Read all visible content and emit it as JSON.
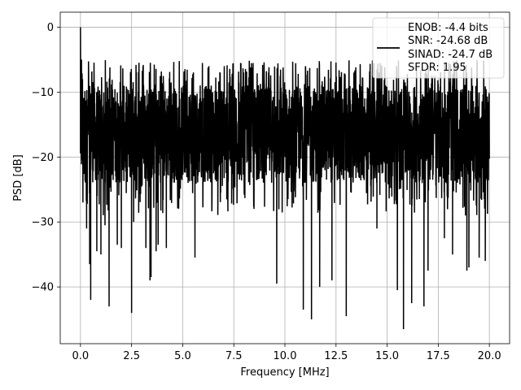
{
  "chart_data": {
    "type": "line",
    "title": "",
    "xlabel": "Frequency [MHz]",
    "ylabel": "PSD [dB]",
    "xlim": [
      -0.99,
      20.99
    ],
    "ylim": [
      -48.74,
      2.31
    ],
    "xticks": [
      0.0,
      2.5,
      5.0,
      7.5,
      10.0,
      12.5,
      15.0,
      17.5,
      20.0
    ],
    "xtick_labels": [
      "0.0",
      "2.5",
      "5.0",
      "7.5",
      "10.0",
      "12.5",
      "15.0",
      "17.5",
      "20.0"
    ],
    "yticks": [
      0,
      -10,
      -20,
      -30,
      -40
    ],
    "ytick_labels": [
      "0",
      "−10",
      "−20",
      "−30",
      "−40"
    ],
    "grid": true,
    "legend_position": "top-right",
    "legend_lines": [
      "ENOB: -4.4 bits",
      "SNR: -24.68 dB",
      "SINAD: -24.7 dB",
      "SFDR: 1.95"
    ],
    "series": [
      {
        "color": "#000000",
        "noise_band": {
          "x_start": 0.0,
          "x_end": 20.0,
          "typical_min": -24.0,
          "typical_max": -9.0
        },
        "peaks": [
          [
            0.0,
            0.0
          ],
          [
            0.05,
            -5.0
          ],
          [
            0.1,
            -8.0
          ]
        ],
        "dips": [
          [
            0.12,
            -27.0
          ],
          [
            0.3,
            -31.0
          ],
          [
            0.45,
            -36.5
          ],
          [
            0.5,
            -42.0
          ],
          [
            0.8,
            -34.5
          ],
          [
            1.0,
            -35.0
          ],
          [
            1.2,
            -30.5
          ],
          [
            1.4,
            -43.0
          ],
          [
            1.8,
            -33.5
          ],
          [
            2.0,
            -34.0
          ],
          [
            2.5,
            -44.0
          ],
          [
            2.6,
            -30.0
          ],
          [
            3.2,
            -34.0
          ],
          [
            3.4,
            -39.0
          ],
          [
            3.45,
            -38.5
          ],
          [
            3.7,
            -34.5
          ],
          [
            3.8,
            -33.5
          ],
          [
            4.2,
            -34.0
          ],
          [
            5.6,
            -35.5
          ],
          [
            9.6,
            -39.5
          ],
          [
            10.9,
            -43.5
          ],
          [
            11.3,
            -45.0
          ],
          [
            11.7,
            -40.0
          ],
          [
            12.3,
            -39.0
          ],
          [
            13.0,
            -44.5
          ],
          [
            14.5,
            -31.0
          ],
          [
            15.5,
            -40.5
          ],
          [
            15.8,
            -46.5
          ],
          [
            16.2,
            -42.5
          ],
          [
            16.8,
            -43.0
          ],
          [
            17.0,
            -37.5
          ],
          [
            17.8,
            -32.5
          ],
          [
            18.2,
            -35.0
          ],
          [
            18.9,
            -37.5
          ],
          [
            19.0,
            -37.0
          ],
          [
            19.5,
            -35.5
          ],
          [
            19.8,
            -36.0
          ]
        ]
      }
    ]
  }
}
